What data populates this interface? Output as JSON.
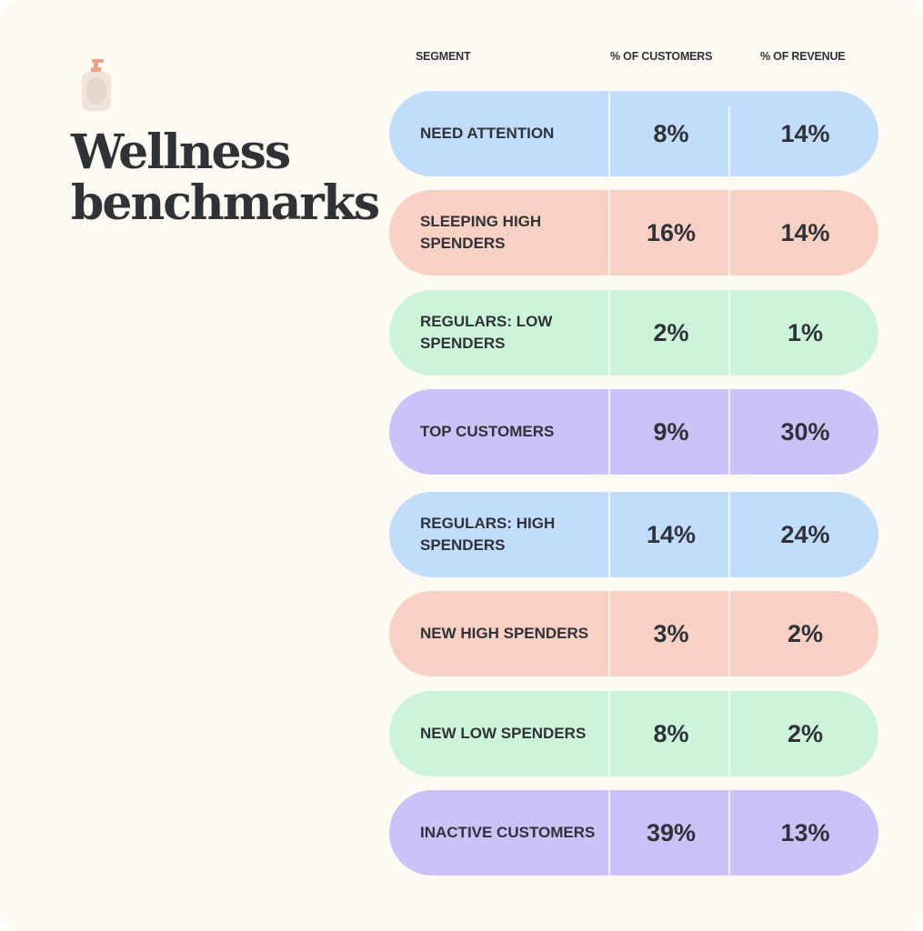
{
  "title_line1": "Wellness",
  "title_line2": "benchmarks",
  "icon": "soap-bottle-icon",
  "headers": {
    "segment": "SEGMENT",
    "customers": "% OF CUSTOMERS",
    "revenue": "% OF REVENUE"
  },
  "colors": {
    "blue": "#c2dcfc",
    "salmon": "#f8d0c4",
    "green": "#cdf3db",
    "purple": "#cbc2f7"
  },
  "rows": [
    {
      "segment": "NEED ATTENTION",
      "customers": "8%",
      "revenue": "14%",
      "color": "#c2dcfc"
    },
    {
      "segment": "SLEEPING HIGH SPENDERS",
      "customers": "16%",
      "revenue": "14%",
      "color": "#f8d0c4"
    },
    {
      "segment": "REGULARS: LOW SPENDERS",
      "customers": "2%",
      "revenue": "1%",
      "color": "#cdf3db"
    },
    {
      "segment": "TOP CUSTOMERS",
      "customers": "9%",
      "revenue": "30%",
      "color": "#cbc2f7"
    },
    {
      "segment": "REGULARS: HIGH SPENDERS",
      "customers": "14%",
      "revenue": "24%",
      "color": "#c2dcfc"
    },
    {
      "segment": "NEW HIGH SPENDERS",
      "customers": "3%",
      "revenue": "2%",
      "color": "#f8d0c4"
    },
    {
      "segment": "NEW LOW SPENDERS",
      "customers": "8%",
      "revenue": "2%",
      "color": "#cdf3db"
    },
    {
      "segment": "INACTIVE CUSTOMERS",
      "customers": "39%",
      "revenue": "13%",
      "color": "#cbc2f7"
    }
  ]
}
